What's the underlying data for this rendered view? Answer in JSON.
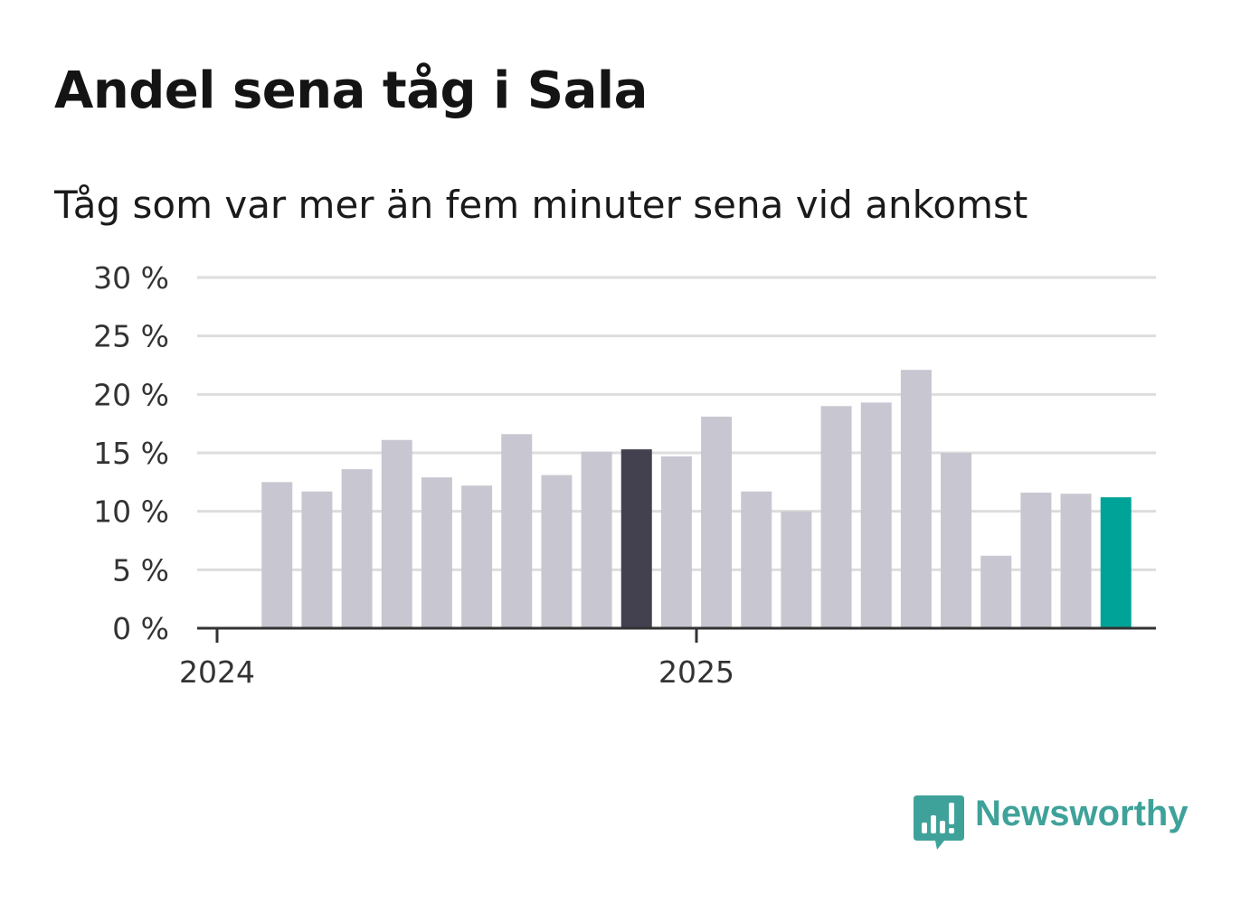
{
  "title": "Andel sena tåg i Sala",
  "subtitle": "Tåg som var mer än fem minuter sena vid ankomst",
  "brand": {
    "name": "Newsworthy",
    "icon": "newsworthy-logo-icon",
    "color": "#3fa29a"
  },
  "colors": {
    "default_bar": "#c8c7d1",
    "highlight_bar": "#434050",
    "latest_bar": "#00a397",
    "grid": "#dddddd",
    "axis": "#333333"
  },
  "chart_data": {
    "type": "bar",
    "title": "Andel sena tåg i Sala",
    "subtitle": "Tåg som var mer än fem minuter sena vid ankomst",
    "xlabel": "",
    "ylabel": "",
    "ylim": [
      0,
      30
    ],
    "y_ticks": [
      "0 %",
      "5 %",
      "10 %",
      "15 %",
      "20 %",
      "25 %",
      "30 %"
    ],
    "y_tick_values": [
      0,
      5,
      10,
      15,
      20,
      25,
      30
    ],
    "x_ticks": [
      "2024",
      "2025"
    ],
    "x_tick_dates": [
      "2024-01-01",
      "2025-01-01"
    ],
    "categories": [
      "2024-02",
      "2024-03",
      "2024-04",
      "2024-05",
      "2024-06",
      "2024-07",
      "2024-08",
      "2024-09",
      "2024-10",
      "2024-11",
      "2024-12",
      "2025-01",
      "2025-02",
      "2025-03",
      "2025-04",
      "2025-05",
      "2025-06",
      "2025-07",
      "2025-08",
      "2025-09",
      "2025-10",
      "2025-11"
    ],
    "values": [
      12.5,
      11.7,
      13.6,
      16.1,
      12.9,
      12.2,
      16.6,
      13.1,
      15.1,
      15.3,
      14.7,
      18.1,
      11.7,
      10.0,
      19.0,
      19.3,
      22.1,
      15.0,
      6.2,
      11.6,
      11.5,
      11.2
    ],
    "highlight": {
      "2024-11": "highlight_bar",
      "2025-11": "latest_bar"
    },
    "grid": true,
    "legend": "none"
  }
}
